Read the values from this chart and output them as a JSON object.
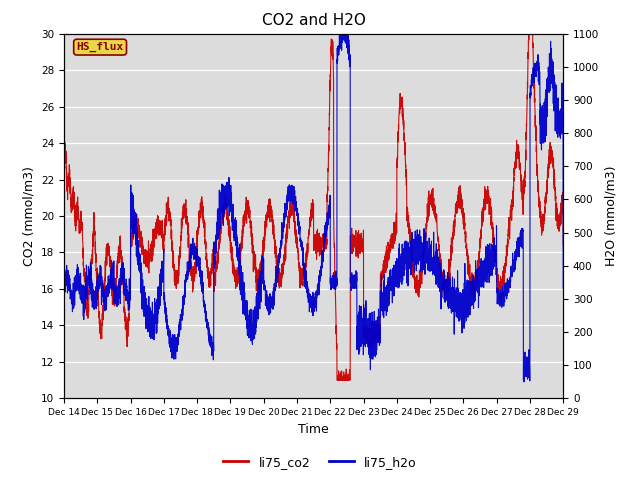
{
  "title": "CO2 and H2O",
  "xlabel": "Time",
  "ylabel_left": "CO2 (mmol/m3)",
  "ylabel_right": "H2O (mmol/m3)",
  "ylim_left": [
    10,
    30
  ],
  "ylim_right": [
    0,
    1100
  ],
  "yticks_left": [
    10,
    12,
    14,
    16,
    18,
    20,
    22,
    24,
    26,
    28,
    30
  ],
  "yticks_right": [
    0,
    100,
    200,
    300,
    400,
    500,
    600,
    700,
    800,
    900,
    1000,
    1100
  ],
  "xtick_labels": [
    "Dec 14",
    "Dec 15",
    "Dec 16",
    "Dec 17",
    "Dec 18",
    "Dec 19",
    "Dec 20",
    "Dec 21",
    "Dec 22",
    "Dec 23",
    "Dec 24",
    "Dec 25",
    "Dec 26",
    "Dec 27",
    "Dec 28",
    "Dec 29"
  ],
  "color_co2": "#cc0000",
  "color_h2o": "#0000cc",
  "bg_color": "#dcdcdc",
  "fig_bg_color": "#ffffff",
  "hs_flux_label": "HS_flux",
  "hs_flux_bg": "#e8d848",
  "hs_flux_border": "#8b0000",
  "legend_co2": "li75_co2",
  "legend_h2o": "li75_h2o",
  "title_fontsize": 11,
  "axis_label_fontsize": 9,
  "tick_fontsize": 7.5
}
